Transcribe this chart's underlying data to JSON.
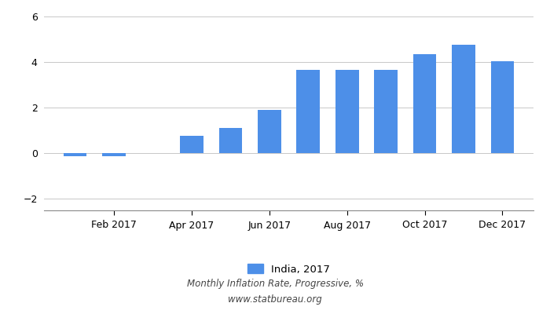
{
  "month_nums": [
    1,
    2,
    3,
    4,
    5,
    6,
    7,
    8,
    9,
    10,
    11,
    12
  ],
  "values": [
    -0.14,
    -0.13,
    0.0,
    0.75,
    1.1,
    1.9,
    3.65,
    3.65,
    3.65,
    4.35,
    4.75,
    4.03
  ],
  "bar_color": "#4d8fe8",
  "ylim": [
    -2.5,
    6.3
  ],
  "yticks": [
    -2,
    0,
    2,
    4,
    6
  ],
  "xtick_positions": [
    2,
    4,
    6,
    8,
    10,
    12
  ],
  "xtick_labels": [
    "Feb 2017",
    "Apr 2017",
    "Jun 2017",
    "Aug 2017",
    "Oct 2017",
    "Dec 2017"
  ],
  "legend_label": "India, 2017",
  "footer_line1": "Monthly Inflation Rate, Progressive, %",
  "footer_line2": "www.statbureau.org",
  "background_color": "#ffffff",
  "grid_color": "#c8c8c8"
}
